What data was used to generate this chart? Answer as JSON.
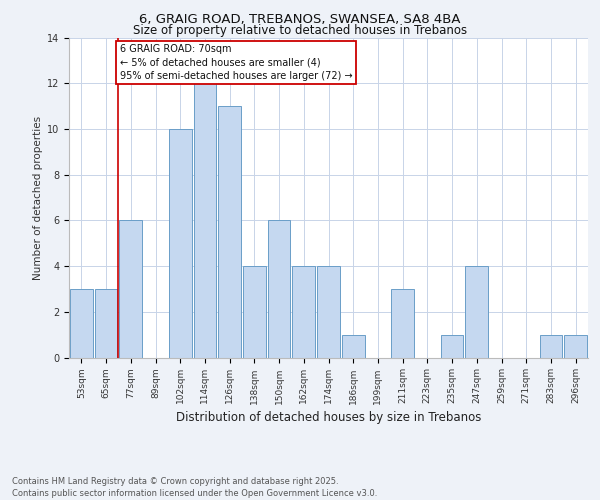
{
  "title_line1": "6, GRAIG ROAD, TREBANOS, SWANSEA, SA8 4BA",
  "title_line2": "Size of property relative to detached houses in Trebanos",
  "xlabel": "Distribution of detached houses by size in Trebanos",
  "ylabel": "Number of detached properties",
  "categories": [
    "53sqm",
    "65sqm",
    "77sqm",
    "89sqm",
    "102sqm",
    "114sqm",
    "126sqm",
    "138sqm",
    "150sqm",
    "162sqm",
    "174sqm",
    "186sqm",
    "199sqm",
    "211sqm",
    "223sqm",
    "235sqm",
    "247sqm",
    "259sqm",
    "271sqm",
    "283sqm",
    "296sqm"
  ],
  "values": [
    3,
    3,
    6,
    0,
    10,
    12,
    11,
    4,
    6,
    4,
    4,
    1,
    0,
    3,
    0,
    1,
    4,
    0,
    0,
    1,
    1
  ],
  "bar_color": "#c5d8f0",
  "bar_edge_color": "#6a9ec8",
  "highlight_index": 1,
  "highlight_color": "#cc0000",
  "ylim": [
    0,
    14
  ],
  "yticks": [
    0,
    2,
    4,
    6,
    8,
    10,
    12,
    14
  ],
  "annotation_text": "6 GRAIG ROAD: 70sqm\n← 5% of detached houses are smaller (4)\n95% of semi-detached houses are larger (72) →",
  "footnote": "Contains HM Land Registry data © Crown copyright and database right 2025.\nContains public sector information licensed under the Open Government Licence v3.0.",
  "background_color": "#eef2f8",
  "plot_background": "#ffffff",
  "grid_color": "#c8d4e8",
  "annotation_box_color": "#ffffff",
  "annotation_border_color": "#cc0000",
  "title1_fontsize": 9.5,
  "title2_fontsize": 8.5,
  "ylabel_fontsize": 7.5,
  "xlabel_fontsize": 8.5,
  "tick_fontsize": 6.5,
  "footnote_fontsize": 6.0,
  "ann_fontsize": 7.0
}
